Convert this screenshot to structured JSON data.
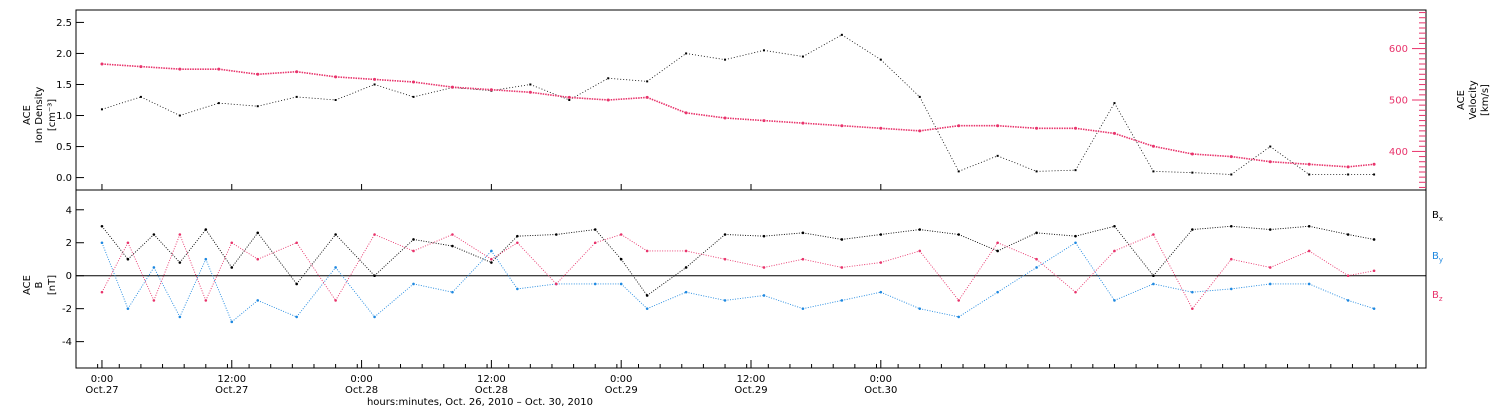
{
  "chart_data": [
    {
      "type": "scatter",
      "panel": "top",
      "ylabel_left": [
        "ACE",
        "Ion Density",
        "[cm⁻³]"
      ],
      "ylabel_right": [
        "ACE",
        "Velocity",
        "[km/s]"
      ],
      "y_left_ticks": [
        "0.0",
        "0.5",
        "1.0",
        "1.5",
        "2.0",
        "2.5"
      ],
      "y_left_range": [
        -0.2,
        2.7
      ],
      "y_right_ticks": [
        "400",
        "500",
        "600"
      ],
      "y_right_range": [
        325,
        675
      ],
      "series": [
        {
          "name": "",
          "axis": "left",
          "color": "#000000",
          "points": [
            [
              0.0,
              1.1
            ],
            [
              0.15,
              1.3
            ],
            [
              0.3,
              1.0
            ],
            [
              0.45,
              1.2
            ],
            [
              0.6,
              1.15
            ],
            [
              0.75,
              1.3
            ],
            [
              0.9,
              1.25
            ],
            [
              1.05,
              1.5
            ],
            [
              1.2,
              1.3
            ],
            [
              1.35,
              1.45
            ],
            [
              1.5,
              1.4
            ],
            [
              1.65,
              1.5
            ],
            [
              1.8,
              1.25
            ],
            [
              1.95,
              1.6
            ],
            [
              2.1,
              1.55
            ],
            [
              2.25,
              2.0
            ],
            [
              2.4,
              1.9
            ],
            [
              2.55,
              2.05
            ],
            [
              2.7,
              1.95
            ],
            [
              2.85,
              2.3
            ],
            [
              3.0,
              1.9
            ],
            [
              3.15,
              1.3
            ],
            [
              3.3,
              0.1
            ],
            [
              3.45,
              0.35
            ],
            [
              3.6,
              0.1
            ],
            [
              3.75,
              0.12
            ],
            [
              3.9,
              1.2
            ],
            [
              4.05,
              0.1
            ],
            [
              4.2,
              0.08
            ],
            [
              4.35,
              0.05
            ],
            [
              4.5,
              0.5
            ],
            [
              4.65,
              0.05
            ],
            [
              4.8,
              0.05
            ],
            [
              4.9,
              0.05
            ]
          ]
        },
        {
          "name": "",
          "axis": "right",
          "color": "#e8336b",
          "points": [
            [
              0.0,
              570
            ],
            [
              0.15,
              565
            ],
            [
              0.3,
              560
            ],
            [
              0.45,
              560
            ],
            [
              0.6,
              550
            ],
            [
              0.75,
              555
            ],
            [
              0.9,
              545
            ],
            [
              1.05,
              540
            ],
            [
              1.2,
              535
            ],
            [
              1.35,
              525
            ],
            [
              1.5,
              520
            ],
            [
              1.65,
              515
            ],
            [
              1.8,
              505
            ],
            [
              1.95,
              500
            ],
            [
              2.1,
              505
            ],
            [
              2.25,
              475
            ],
            [
              2.4,
              465
            ],
            [
              2.55,
              460
            ],
            [
              2.7,
              455
            ],
            [
              2.85,
              450
            ],
            [
              3.0,
              445
            ],
            [
              3.15,
              440
            ],
            [
              3.3,
              450
            ],
            [
              3.45,
              450
            ],
            [
              3.6,
              445
            ],
            [
              3.75,
              445
            ],
            [
              3.9,
              435
            ],
            [
              4.05,
              410
            ],
            [
              4.2,
              395
            ],
            [
              4.35,
              390
            ],
            [
              4.5,
              380
            ],
            [
              4.65,
              375
            ],
            [
              4.8,
              370
            ],
            [
              4.9,
              375
            ]
          ]
        }
      ]
    },
    {
      "type": "scatter",
      "panel": "bottom",
      "ylabel_left": [
        "ACE",
        "B",
        "[nT]"
      ],
      "y_ticks": [
        "4",
        "2",
        "0",
        "-2",
        "-4"
      ],
      "y_range": [
        -5.6,
        5.2
      ],
      "zero_line": true,
      "series": [
        {
          "name": "Bx",
          "color": "#000000",
          "points": [
            [
              0.0,
              3.0
            ],
            [
              0.1,
              1.0
            ],
            [
              0.2,
              2.5
            ],
            [
              0.3,
              0.8
            ],
            [
              0.4,
              2.8
            ],
            [
              0.5,
              0.5
            ],
            [
              0.6,
              2.6
            ],
            [
              0.75,
              -0.5
            ],
            [
              0.9,
              2.5
            ],
            [
              1.05,
              0.0
            ],
            [
              1.2,
              2.2
            ],
            [
              1.35,
              1.8
            ],
            [
              1.5,
              0.8
            ],
            [
              1.6,
              2.4
            ],
            [
              1.75,
              2.5
            ],
            [
              1.9,
              2.8
            ],
            [
              2.0,
              1.0
            ],
            [
              2.1,
              -1.2
            ],
            [
              2.25,
              0.5
            ],
            [
              2.4,
              2.5
            ],
            [
              2.55,
              2.4
            ],
            [
              2.7,
              2.6
            ],
            [
              2.85,
              2.2
            ],
            [
              3.0,
              2.5
            ],
            [
              3.15,
              2.8
            ],
            [
              3.3,
              2.5
            ],
            [
              3.45,
              1.5
            ],
            [
              3.6,
              2.6
            ],
            [
              3.75,
              2.4
            ],
            [
              3.9,
              3.0
            ],
            [
              4.05,
              0.0
            ],
            [
              4.2,
              2.8
            ],
            [
              4.35,
              3.0
            ],
            [
              4.5,
              2.8
            ],
            [
              4.65,
              3.0
            ],
            [
              4.8,
              2.5
            ],
            [
              4.9,
              2.2
            ]
          ]
        },
        {
          "name": "By",
          "color": "#1e88e0",
          "points": [
            [
              0.0,
              2.0
            ],
            [
              0.1,
              -2.0
            ],
            [
              0.2,
              0.5
            ],
            [
              0.3,
              -2.5
            ],
            [
              0.4,
              1.0
            ],
            [
              0.5,
              -2.8
            ],
            [
              0.6,
              -1.5
            ],
            [
              0.75,
              -2.5
            ],
            [
              0.9,
              0.5
            ],
            [
              1.05,
              -2.5
            ],
            [
              1.2,
              -0.5
            ],
            [
              1.35,
              -1.0
            ],
            [
              1.5,
              1.5
            ],
            [
              1.6,
              -0.8
            ],
            [
              1.75,
              -0.5
            ],
            [
              1.9,
              -0.5
            ],
            [
              2.0,
              -0.5
            ],
            [
              2.1,
              -2.0
            ],
            [
              2.25,
              -1.0
            ],
            [
              2.4,
              -1.5
            ],
            [
              2.55,
              -1.2
            ],
            [
              2.7,
              -2.0
            ],
            [
              2.85,
              -1.5
            ],
            [
              3.0,
              -1.0
            ],
            [
              3.15,
              -2.0
            ],
            [
              3.3,
              -2.5
            ],
            [
              3.45,
              -1.0
            ],
            [
              3.6,
              0.5
            ],
            [
              3.75,
              2.0
            ],
            [
              3.9,
              -1.5
            ],
            [
              4.05,
              -0.5
            ],
            [
              4.2,
              -1.0
            ],
            [
              4.35,
              -0.8
            ],
            [
              4.5,
              -0.5
            ],
            [
              4.65,
              -0.5
            ],
            [
              4.8,
              -1.5
            ],
            [
              4.9,
              -2.0
            ]
          ]
        },
        {
          "name": "Bz",
          "color": "#e8336b",
          "points": [
            [
              0.0,
              -1.0
            ],
            [
              0.1,
              2.0
            ],
            [
              0.2,
              -1.5
            ],
            [
              0.3,
              2.5
            ],
            [
              0.4,
              -1.5
            ],
            [
              0.5,
              2.0
            ],
            [
              0.6,
              1.0
            ],
            [
              0.75,
              2.0
            ],
            [
              0.9,
              -1.5
            ],
            [
              1.05,
              2.5
            ],
            [
              1.2,
              1.5
            ],
            [
              1.35,
              2.5
            ],
            [
              1.5,
              1.0
            ],
            [
              1.6,
              2.0
            ],
            [
              1.75,
              -0.5
            ],
            [
              1.9,
              2.0
            ],
            [
              2.0,
              2.5
            ],
            [
              2.1,
              1.5
            ],
            [
              2.25,
              1.5
            ],
            [
              2.4,
              1.0
            ],
            [
              2.55,
              0.5
            ],
            [
              2.7,
              1.0
            ],
            [
              2.85,
              0.5
            ],
            [
              3.0,
              0.8
            ],
            [
              3.15,
              1.5
            ],
            [
              3.3,
              -1.5
            ],
            [
              3.45,
              2.0
            ],
            [
              3.6,
              1.0
            ],
            [
              3.75,
              -1.0
            ],
            [
              3.9,
              1.5
            ],
            [
              4.05,
              2.5
            ],
            [
              4.2,
              -2.0
            ],
            [
              4.35,
              1.0
            ],
            [
              4.5,
              0.5
            ],
            [
              4.65,
              1.5
            ],
            [
              4.8,
              0.0
            ],
            [
              4.9,
              0.3
            ]
          ]
        }
      ],
      "legend": [
        "Bx",
        "By",
        "Bz"
      ],
      "legend_placement": "right"
    }
  ],
  "x_axis": {
    "range_days": [
      -0.1,
      5.1
    ],
    "ticks": [
      {
        "t": 0.0,
        "time": "0:00",
        "date": "Oct.27"
      },
      {
        "t": 0.5,
        "time": "12:00",
        "date": "Oct.27"
      },
      {
        "t": 1.0,
        "time": "0:00",
        "date": "Oct.28"
      },
      {
        "t": 1.5,
        "time": "12:00",
        "date": "Oct.28"
      },
      {
        "t": 2.0,
        "time": "0:00",
        "date": "Oct.29"
      },
      {
        "t": 2.5,
        "time": "12:00",
        "date": "Oct.29"
      },
      {
        "t": 3.0,
        "time": "0:00",
        "date": "Oct.30"
      }
    ],
    "title": "hours:minutes, Oct. 26, 2010 – Oct. 30, 2010"
  },
  "legend_labels": {
    "Bx": {
      "main": "B",
      "sub": "x"
    },
    "By": {
      "main": "B",
      "sub": "y"
    },
    "Bz": {
      "main": "B",
      "sub": "z"
    }
  }
}
